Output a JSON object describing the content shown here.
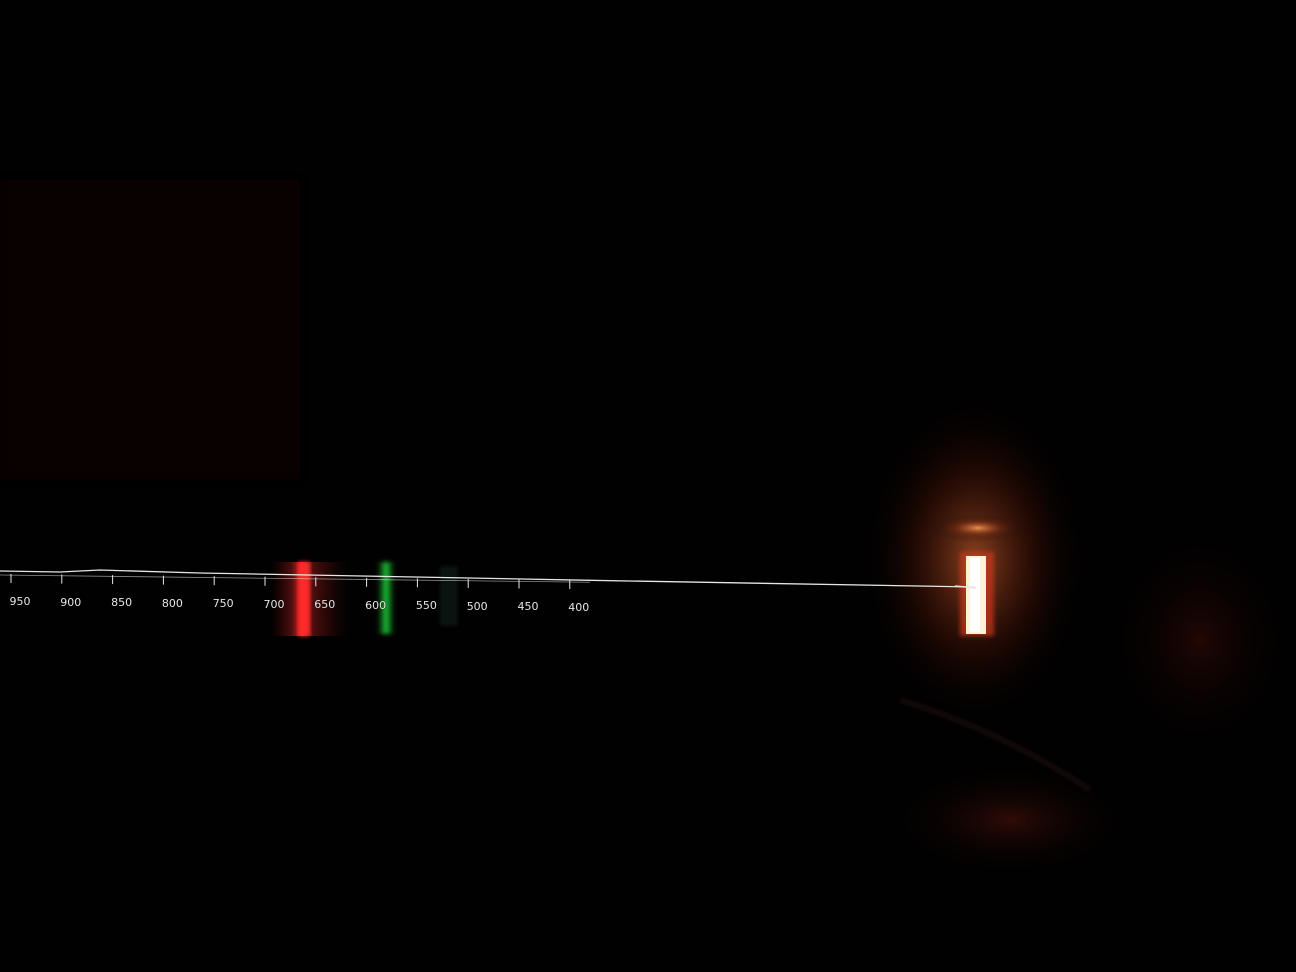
{
  "scale": {
    "ticks": [
      {
        "label": "950"
      },
      {
        "label": "900"
      },
      {
        "label": "850"
      },
      {
        "label": "800"
      },
      {
        "label": "750"
      },
      {
        "label": "700"
      },
      {
        "label": "650"
      },
      {
        "label": "600"
      },
      {
        "label": "550"
      },
      {
        "label": "500"
      },
      {
        "label": "450"
      },
      {
        "label": "400"
      }
    ]
  },
  "emission_lines": [
    {
      "name": "red-line",
      "color": "#ff2a2a"
    },
    {
      "name": "green-line",
      "color": "#1fcf3a"
    }
  ],
  "colors": {
    "background": "#020101",
    "slit": "#fff1d6",
    "scale": "#e6e6e6"
  }
}
